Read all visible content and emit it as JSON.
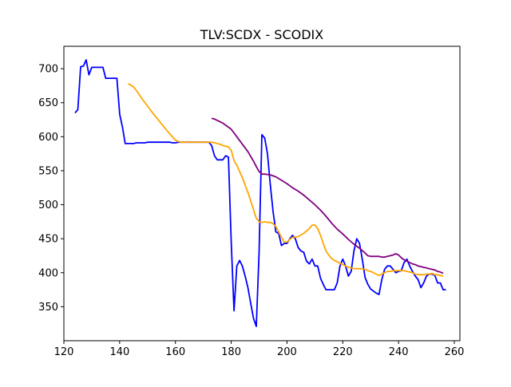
{
  "chart_data": {
    "type": "line",
    "title": "TLV:SCDX - SCODIX",
    "xlabel": "",
    "ylabel": "",
    "xlim": [
      120,
      262
    ],
    "ylim": [
      300,
      733
    ],
    "xticks": [
      120,
      140,
      160,
      180,
      200,
      220,
      240,
      260
    ],
    "yticks": [
      350,
      400,
      450,
      500,
      550,
      600,
      650,
      700
    ],
    "grid": false,
    "legend": "none",
    "series": [
      {
        "color": "#0000ff",
        "points": [
          [
            124,
            635
          ],
          [
            125,
            640
          ],
          [
            126,
            703
          ],
          [
            127,
            704
          ],
          [
            128,
            713
          ],
          [
            129,
            691
          ],
          [
            130,
            702
          ],
          [
            131,
            702
          ],
          [
            132,
            702
          ],
          [
            133,
            702
          ],
          [
            134,
            702
          ],
          [
            135,
            686
          ],
          [
            136,
            686
          ],
          [
            137,
            686
          ],
          [
            138,
            686
          ],
          [
            139,
            686
          ],
          [
            140,
            633
          ],
          [
            141,
            614
          ],
          [
            142,
            590
          ],
          [
            143,
            590
          ],
          [
            144,
            590
          ],
          [
            145,
            590
          ],
          [
            146,
            591
          ],
          [
            147,
            591
          ],
          [
            148,
            591
          ],
          [
            149,
            591
          ],
          [
            150,
            592
          ],
          [
            151,
            592
          ],
          [
            152,
            592
          ],
          [
            153,
            592
          ],
          [
            154,
            592
          ],
          [
            155,
            592
          ],
          [
            156,
            592
          ],
          [
            157,
            592
          ],
          [
            158,
            592
          ],
          [
            159,
            591
          ],
          [
            160,
            591
          ],
          [
            161,
            592
          ],
          [
            162,
            592
          ],
          [
            163,
            592
          ],
          [
            164,
            592
          ],
          [
            165,
            592
          ],
          [
            166,
            592
          ],
          [
            167,
            592
          ],
          [
            168,
            592
          ],
          [
            169,
            592
          ],
          [
            170,
            592
          ],
          [
            171,
            592
          ],
          [
            172,
            592
          ],
          [
            173,
            587
          ],
          [
            174,
            572
          ],
          [
            175,
            566
          ],
          [
            176,
            566
          ],
          [
            177,
            566
          ],
          [
            178,
            572
          ],
          [
            179,
            570
          ],
          [
            180,
            445
          ],
          [
            181,
            344
          ],
          [
            182,
            410
          ],
          [
            183,
            418
          ],
          [
            184,
            410
          ],
          [
            185,
            395
          ],
          [
            186,
            378
          ],
          [
            187,
            355
          ],
          [
            188,
            333
          ],
          [
            189,
            321
          ],
          [
            190,
            430
          ],
          [
            191,
            603
          ],
          [
            192,
            598
          ],
          [
            193,
            575
          ],
          [
            194,
            530
          ],
          [
            195,
            490
          ],
          [
            196,
            460
          ],
          [
            197,
            458
          ],
          [
            198,
            440
          ],
          [
            199,
            443
          ],
          [
            200,
            443
          ],
          [
            201,
            450
          ],
          [
            202,
            455
          ],
          [
            203,
            450
          ],
          [
            204,
            437
          ],
          [
            205,
            432
          ],
          [
            206,
            430
          ],
          [
            207,
            417
          ],
          [
            208,
            413
          ],
          [
            209,
            420
          ],
          [
            210,
            410
          ],
          [
            211,
            410
          ],
          [
            212,
            392
          ],
          [
            213,
            383
          ],
          [
            214,
            375
          ],
          [
            215,
            375
          ],
          [
            216,
            375
          ],
          [
            217,
            375
          ],
          [
            218,
            385
          ],
          [
            219,
            410
          ],
          [
            220,
            420
          ],
          [
            221,
            410
          ],
          [
            222,
            395
          ],
          [
            223,
            402
          ],
          [
            224,
            432
          ],
          [
            225,
            450
          ],
          [
            226,
            443
          ],
          [
            227,
            420
          ],
          [
            228,
            393
          ],
          [
            229,
            383
          ],
          [
            230,
            376
          ],
          [
            231,
            373
          ],
          [
            232,
            370
          ],
          [
            233,
            368
          ],
          [
            234,
            390
          ],
          [
            235,
            405
          ],
          [
            236,
            410
          ],
          [
            237,
            410
          ],
          [
            238,
            405
          ],
          [
            239,
            400
          ],
          [
            240,
            402
          ],
          [
            241,
            403
          ],
          [
            242,
            415
          ],
          [
            243,
            420
          ],
          [
            244,
            410
          ],
          [
            245,
            402
          ],
          [
            246,
            395
          ],
          [
            247,
            390
          ],
          [
            248,
            378
          ],
          [
            249,
            385
          ],
          [
            250,
            395
          ],
          [
            251,
            398
          ],
          [
            252,
            398
          ],
          [
            253,
            396
          ],
          [
            254,
            385
          ],
          [
            255,
            385
          ],
          [
            256,
            375
          ],
          [
            257,
            375
          ]
        ]
      },
      {
        "color": "#ffa500",
        "points": [
          [
            143,
            678
          ],
          [
            144,
            676
          ],
          [
            145,
            673
          ],
          [
            146,
            668
          ],
          [
            147,
            662
          ],
          [
            148,
            656
          ],
          [
            150,
            645
          ],
          [
            152,
            634
          ],
          [
            154,
            624
          ],
          [
            156,
            614
          ],
          [
            158,
            604
          ],
          [
            160,
            595
          ],
          [
            161,
            593
          ],
          [
            162,
            592
          ],
          [
            164,
            592
          ],
          [
            166,
            592
          ],
          [
            168,
            592
          ],
          [
            170,
            592
          ],
          [
            172,
            592
          ],
          [
            173,
            592
          ],
          [
            174,
            591
          ],
          [
            175,
            590
          ],
          [
            176,
            589
          ],
          [
            177,
            587
          ],
          [
            178,
            586
          ],
          [
            179,
            585
          ],
          [
            180,
            580
          ],
          [
            181,
            565
          ],
          [
            182,
            558
          ],
          [
            184,
            540
          ],
          [
            186,
            518
          ],
          [
            188,
            493
          ],
          [
            189,
            480
          ],
          [
            190,
            475
          ],
          [
            191,
            474
          ],
          [
            192,
            475
          ],
          [
            193,
            474
          ],
          [
            194,
            474
          ],
          [
            195,
            472
          ],
          [
            196,
            468
          ],
          [
            197,
            460
          ],
          [
            198,
            452
          ],
          [
            199,
            445
          ],
          [
            200,
            445
          ],
          [
            201,
            449
          ],
          [
            202,
            452
          ],
          [
            204,
            453
          ],
          [
            206,
            458
          ],
          [
            208,
            465
          ],
          [
            209,
            470
          ],
          [
            210,
            470
          ],
          [
            211,
            465
          ],
          [
            212,
            455
          ],
          [
            213,
            443
          ],
          [
            214,
            432
          ],
          [
            215,
            426
          ],
          [
            216,
            421
          ],
          [
            217,
            418
          ],
          [
            218,
            416
          ],
          [
            219,
            414
          ],
          [
            220,
            412
          ],
          [
            221,
            410
          ],
          [
            222,
            408
          ],
          [
            223,
            407
          ],
          [
            224,
            406
          ],
          [
            226,
            406
          ],
          [
            228,
            405
          ],
          [
            229,
            403
          ],
          [
            230,
            402
          ],
          [
            231,
            400
          ],
          [
            232,
            398
          ],
          [
            233,
            396
          ],
          [
            234,
            398
          ],
          [
            235,
            400
          ],
          [
            236,
            402
          ],
          [
            237,
            402
          ],
          [
            238,
            403
          ],
          [
            239,
            403
          ],
          [
            240,
            403
          ],
          [
            242,
            403
          ],
          [
            243,
            402
          ],
          [
            244,
            401
          ],
          [
            245,
            400
          ],
          [
            246,
            398
          ],
          [
            247,
            397
          ],
          [
            248,
            397
          ],
          [
            249,
            397
          ],
          [
            250,
            398
          ],
          [
            251,
            398
          ],
          [
            252,
            399
          ],
          [
            253,
            397
          ],
          [
            254,
            397
          ],
          [
            255,
            396
          ],
          [
            256,
            395
          ]
        ]
      },
      {
        "color": "#800080",
        "points": [
          [
            173,
            627
          ],
          [
            174,
            626
          ],
          [
            175,
            624
          ],
          [
            176,
            622
          ],
          [
            177,
            620
          ],
          [
            178,
            617
          ],
          [
            179,
            614
          ],
          [
            180,
            611
          ],
          [
            182,
            600
          ],
          [
            184,
            589
          ],
          [
            186,
            578
          ],
          [
            188,
            564
          ],
          [
            189,
            556
          ],
          [
            190,
            549
          ],
          [
            191,
            545
          ],
          [
            192,
            545
          ],
          [
            194,
            544
          ],
          [
            196,
            541
          ],
          [
            198,
            536
          ],
          [
            200,
            531
          ],
          [
            202,
            525
          ],
          [
            204,
            520
          ],
          [
            206,
            514
          ],
          [
            208,
            507
          ],
          [
            210,
            500
          ],
          [
            212,
            492
          ],
          [
            214,
            483
          ],
          [
            216,
            473
          ],
          [
            218,
            464
          ],
          [
            220,
            457
          ],
          [
            222,
            449
          ],
          [
            224,
            442
          ],
          [
            226,
            436
          ],
          [
            228,
            429
          ],
          [
            229,
            425
          ],
          [
            230,
            424
          ],
          [
            231,
            424
          ],
          [
            232,
            424
          ],
          [
            233,
            424
          ],
          [
            234,
            423
          ],
          [
            235,
            423
          ],
          [
            236,
            424
          ],
          [
            237,
            425
          ],
          [
            238,
            426
          ],
          [
            239,
            428
          ],
          [
            240,
            426
          ],
          [
            241,
            422
          ],
          [
            242,
            419
          ],
          [
            243,
            417
          ],
          [
            244,
            415
          ],
          [
            245,
            413
          ],
          [
            246,
            412
          ],
          [
            247,
            410
          ],
          [
            248,
            409
          ],
          [
            249,
            408
          ],
          [
            250,
            407
          ],
          [
            251,
            406
          ],
          [
            252,
            405
          ],
          [
            253,
            404
          ],
          [
            254,
            402
          ],
          [
            255,
            401
          ],
          [
            256,
            399
          ]
        ]
      }
    ]
  }
}
